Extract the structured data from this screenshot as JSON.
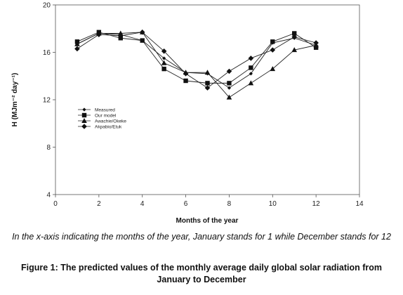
{
  "chart_data": {
    "type": "line",
    "xlabel": "Months of the year",
    "ylabel": "H (MJm⁻² day⁻¹)",
    "xlim": [
      0,
      14
    ],
    "ylim": [
      4,
      20
    ],
    "xticks": [
      0,
      2,
      4,
      6,
      8,
      10,
      12,
      14
    ],
    "yticks": [
      4,
      8,
      12,
      16,
      20
    ],
    "grid": false,
    "legend_position": "left-middle",
    "x": [
      1,
      2,
      3,
      4,
      5,
      6,
      7,
      8,
      9,
      10,
      11,
      12
    ],
    "series": [
      {
        "name": "Measured",
        "marker": "small-diamond",
        "values": [
          16.7,
          17.6,
          17.5,
          17.0,
          15.5,
          14.3,
          14.2,
          13.0,
          14.2,
          16.8,
          17.2,
          16.6
        ]
      },
      {
        "name": "Our model",
        "marker": "square",
        "values": [
          16.9,
          17.7,
          17.2,
          17.0,
          14.6,
          13.6,
          13.4,
          13.4,
          14.7,
          16.9,
          17.6,
          16.4
        ]
      },
      {
        "name": "Awachie/Okeke",
        "marker": "triangle",
        "values": [
          16.7,
          17.6,
          17.6,
          17.7,
          15.1,
          14.3,
          14.3,
          12.2,
          13.4,
          14.6,
          16.2,
          16.6
        ]
      },
      {
        "name": "Akpabio/Etuk",
        "marker": "diamond",
        "values": [
          16.3,
          17.5,
          17.4,
          17.7,
          16.1,
          14.2,
          13.0,
          14.4,
          15.5,
          16.2,
          17.3,
          16.8
        ]
      }
    ]
  },
  "note": "In the x-axis indicating the months of the year, January stands for 1 while December stands for 12",
  "caption": "Figure 1: The predicted values of the monthly average daily global solar radiation from January to December"
}
